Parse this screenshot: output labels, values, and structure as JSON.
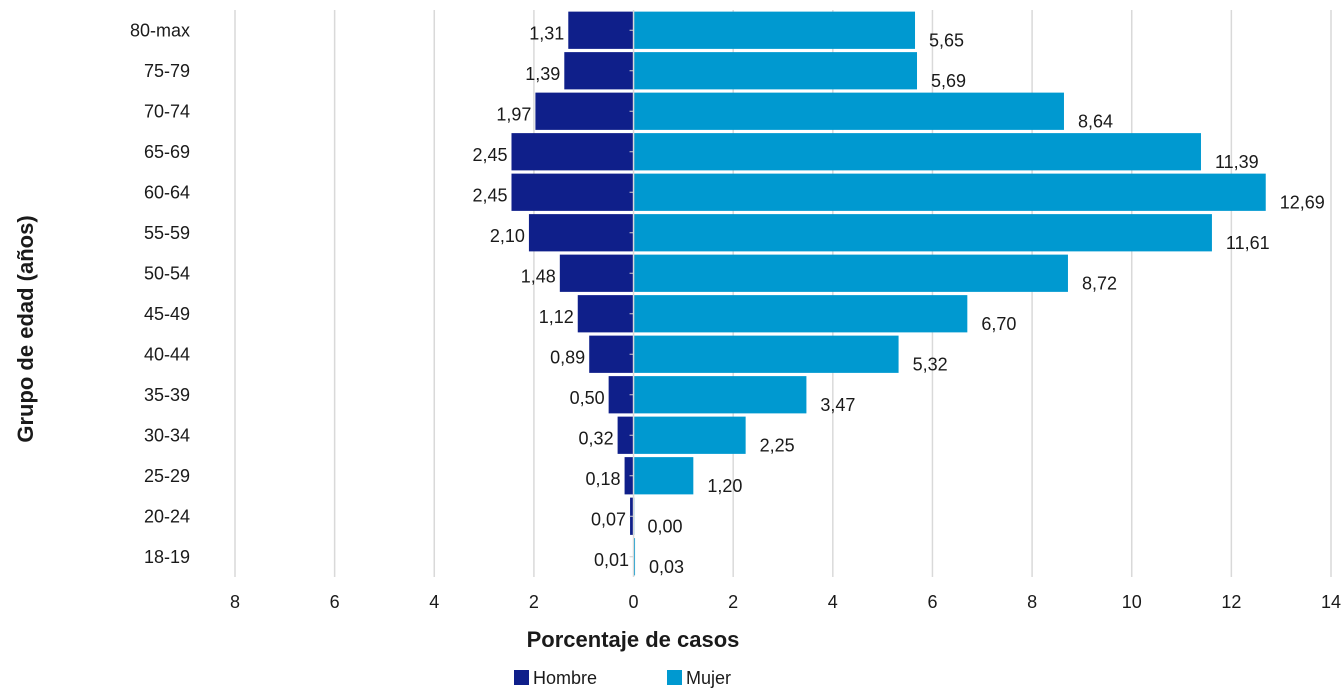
{
  "chart_data": {
    "type": "bar",
    "orientation": "horizontal",
    "subtype": "population-pyramid",
    "title": "",
    "xlabel": "Porcentaje de casos",
    "ylabel": "Grupo de edad (años)",
    "xlim": [
      -8,
      14
    ],
    "x_ticks": [
      -8,
      -6,
      -4,
      -2,
      0,
      2,
      4,
      6,
      8,
      10,
      12,
      14
    ],
    "x_tick_labels": [
      "8",
      "6",
      "4",
      "2",
      "0",
      "2",
      "4",
      "6",
      "8",
      "10",
      "12",
      "14"
    ],
    "grid": "vertical",
    "legend_position": "bottom",
    "categories": [
      "80-max",
      "75-79",
      "70-74",
      "65-69",
      "60-64",
      "55-59",
      "50-54",
      "45-49",
      "40-44",
      "35-39",
      "30-34",
      "25-29",
      "20-24",
      "18-19"
    ],
    "series": [
      {
        "name": "Hombre",
        "color": "#0f1f8a",
        "direction": "left",
        "values": [
          1.31,
          1.39,
          1.97,
          2.45,
          2.45,
          2.1,
          1.48,
          1.12,
          0.89,
          0.5,
          0.32,
          0.18,
          0.07,
          0.01
        ],
        "labels": [
          "1,31",
          "1,39",
          "1,97",
          "2,45",
          "2,45",
          "2,10",
          "1,48",
          "1,12",
          "0,89",
          "0,50",
          "0,32",
          "0,18",
          "0,07",
          "0,01"
        ]
      },
      {
        "name": "Mujer",
        "color": "#0099d0",
        "direction": "right",
        "values": [
          5.65,
          5.69,
          8.64,
          11.39,
          12.69,
          11.61,
          8.72,
          6.7,
          5.32,
          3.47,
          2.25,
          1.2,
          0.0,
          0.03
        ],
        "labels": [
          "5,65",
          "5,69",
          "8,64",
          "11,39",
          "12,69",
          "11,61",
          "8,72",
          "6,70",
          "5,32",
          "3,47",
          "2,25",
          "1,20",
          "0,00",
          "0,03"
        ]
      }
    ]
  }
}
